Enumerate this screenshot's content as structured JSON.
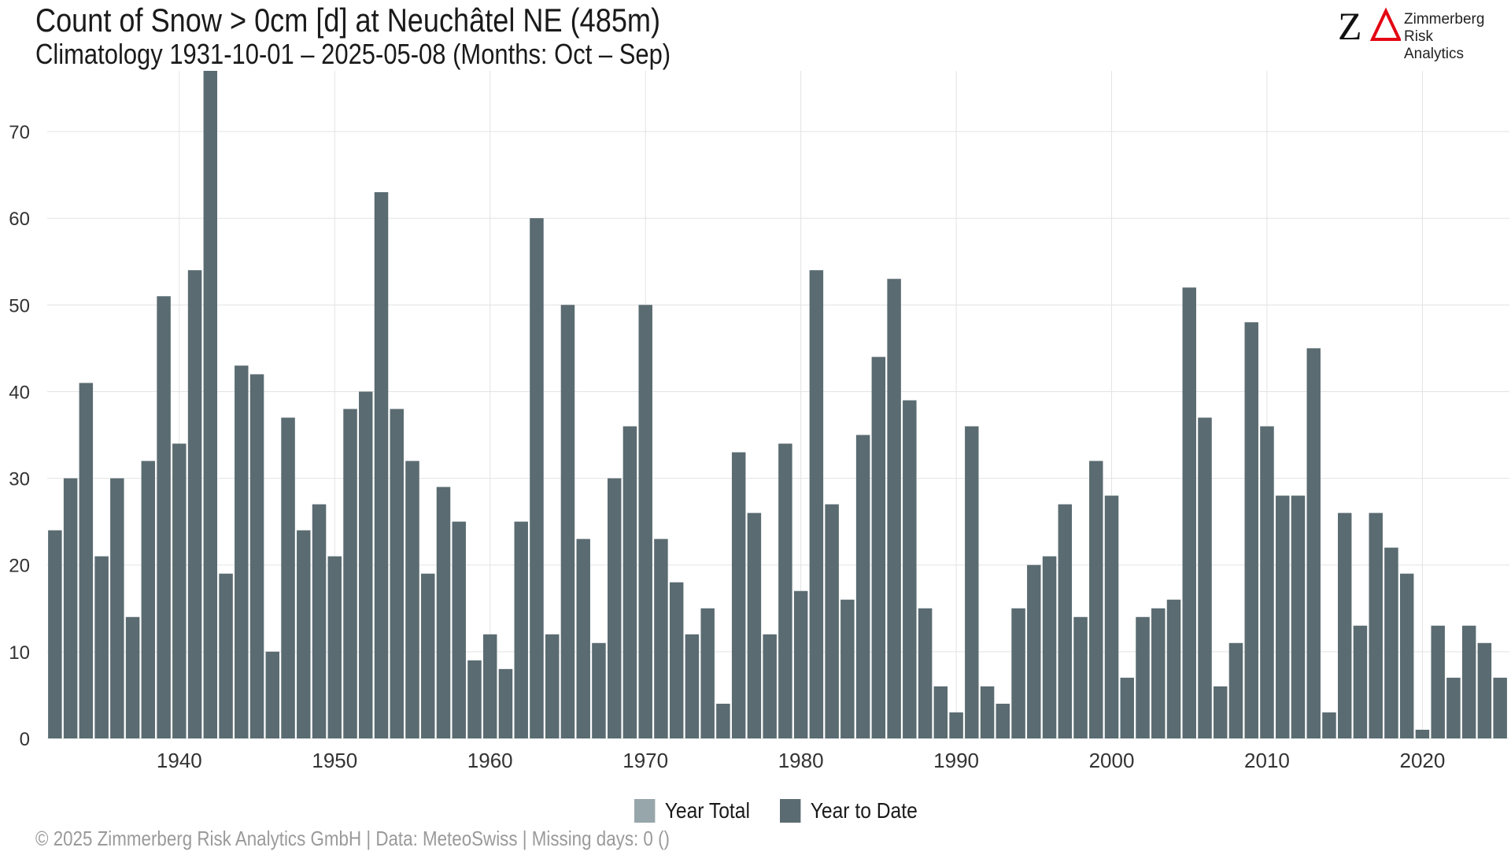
{
  "title": "Count of Snow > 0cm [d] at Neuchâtel  NE (485m)",
  "subtitle": "Climatology 1931-10-01 – 2025-05-08 (Months: Oct – Sep)",
  "logo": {
    "line1": "Zimmerberg",
    "line2": "Risk Analytics",
    "brand_color": "#e30613"
  },
  "footer": "©  2025 Zimmerberg Risk Analytics GmbH | Data: MeteoSwiss | Missing days: 0 ()",
  "legend": [
    {
      "label": "Year Total",
      "color": "#97a6ab"
    },
    {
      "label": "Year to Date",
      "color": "#5a6b71"
    }
  ],
  "chart_data": {
    "type": "bar",
    "title": "Count of Snow > 0cm [d] at Neuchâtel  NE (485m)",
    "xlabel": "",
    "ylabel": "",
    "ylim": [
      0,
      77
    ],
    "yticks": [
      0,
      10,
      20,
      30,
      40,
      50,
      60,
      70
    ],
    "xticks": [
      1940,
      1950,
      1960,
      1970,
      1980,
      1990,
      2000,
      2010,
      2020
    ],
    "grid": true,
    "legend_position": "bottom",
    "x": [
      1932,
      1933,
      1934,
      1935,
      1936,
      1937,
      1938,
      1939,
      1940,
      1941,
      1942,
      1943,
      1944,
      1945,
      1946,
      1947,
      1948,
      1949,
      1950,
      1951,
      1952,
      1953,
      1954,
      1955,
      1956,
      1957,
      1958,
      1959,
      1960,
      1961,
      1962,
      1963,
      1964,
      1965,
      1966,
      1967,
      1968,
      1969,
      1970,
      1971,
      1972,
      1973,
      1974,
      1975,
      1976,
      1977,
      1978,
      1979,
      1980,
      1981,
      1982,
      1983,
      1984,
      1985,
      1986,
      1987,
      1988,
      1989,
      1990,
      1991,
      1992,
      1993,
      1994,
      1995,
      1996,
      1997,
      1998,
      1999,
      2000,
      2001,
      2002,
      2003,
      2004,
      2005,
      2006,
      2007,
      2008,
      2009,
      2010,
      2011,
      2012,
      2013,
      2014,
      2015,
      2016,
      2017,
      2018,
      2019,
      2020,
      2021,
      2022,
      2023,
      2024,
      2025
    ],
    "series": [
      {
        "name": "Year Total",
        "color": "#97a6ab",
        "values": [
          24,
          30,
          41,
          21,
          30,
          14,
          32,
          51,
          34,
          54,
          77,
          19,
          43,
          42,
          10,
          37,
          24,
          27,
          21,
          38,
          40,
          63,
          38,
          32,
          19,
          29,
          25,
          9,
          12,
          8,
          25,
          60,
          12,
          50,
          23,
          11,
          30,
          36,
          50,
          23,
          18,
          12,
          15,
          4,
          33,
          26,
          12,
          34,
          17,
          54,
          27,
          16,
          35,
          44,
          53,
          39,
          15,
          6,
          3,
          36,
          6,
          4,
          15,
          20,
          21,
          27,
          14,
          32,
          28,
          7,
          14,
          15,
          16,
          52,
          37,
          6,
          11,
          48,
          36,
          28,
          28,
          45,
          3,
          26,
          13,
          26,
          22,
          19,
          1,
          13,
          7,
          13,
          11,
          7
        ]
      },
      {
        "name": "Year to Date",
        "color": "#5a6b71",
        "values": [
          24,
          30,
          41,
          21,
          30,
          14,
          32,
          51,
          34,
          54,
          77,
          19,
          43,
          42,
          10,
          37,
          24,
          27,
          21,
          38,
          40,
          63,
          38,
          32,
          19,
          29,
          25,
          9,
          12,
          8,
          25,
          60,
          12,
          50,
          23,
          11,
          30,
          36,
          50,
          23,
          18,
          12,
          15,
          4,
          33,
          26,
          12,
          34,
          17,
          54,
          27,
          16,
          35,
          44,
          53,
          39,
          15,
          6,
          3,
          36,
          6,
          4,
          15,
          20,
          21,
          27,
          14,
          32,
          28,
          7,
          14,
          15,
          16,
          52,
          37,
          6,
          11,
          48,
          36,
          28,
          28,
          45,
          3,
          26,
          13,
          26,
          22,
          19,
          1,
          13,
          7,
          13,
          11,
          7
        ]
      }
    ]
  }
}
